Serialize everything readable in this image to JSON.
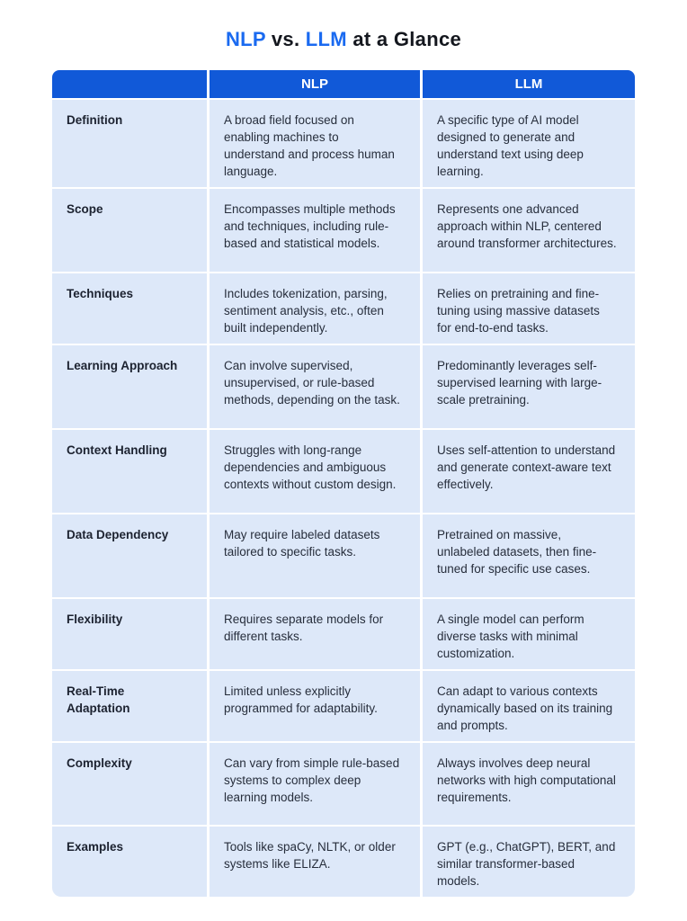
{
  "title": {
    "segments": [
      {
        "text": "NLP"
      },
      {
        "text": " vs. "
      },
      {
        "text": "LLM"
      },
      {
        "text": " at a Glance"
      }
    ]
  },
  "colors": {
    "accent_blue": "#1a6af0",
    "header_bg": "#1159d8",
    "cell_bg": "#dde8f9",
    "title_text": "#14171e",
    "feature_text": "#1c2230",
    "body_text": "#272e3c"
  },
  "table": {
    "header": {
      "feature": "",
      "nlp": "NLP",
      "llm": "LLM"
    },
    "rows": [
      {
        "feature": "Definition",
        "nlp": "A broad field focused on enabling machines to understand and process human language.",
        "llm": "A specific type of AI model designed to generate and understand text using deep learning."
      },
      {
        "feature": "Scope",
        "nlp": "Encompasses multiple methods and techniques, including rule-based and statistical models.",
        "llm": "Represents one advanced approach within NLP, centered around transformer architectures."
      },
      {
        "feature": "Techniques",
        "nlp": "Includes tokenization, parsing, sentiment analysis, etc., often built independently.",
        "llm": "Relies on pretraining and fine-tuning using massive datasets for end-to-end tasks."
      },
      {
        "feature": "Learning Approach",
        "nlp": "Can involve supervised, unsupervised, or rule-based methods, depending on the task.",
        "llm": "Predominantly leverages self-supervised learning with large-scale pretraining."
      },
      {
        "feature": "Context Handling",
        "nlp": "Struggles with long-range dependencies and ambiguous contexts without custom design.",
        "llm": "Uses self-attention to understand and generate context-aware text effectively."
      },
      {
        "feature": "Data Dependency",
        "nlp": "May require labeled datasets tailored to specific tasks.",
        "llm": "Pretrained on massive, unlabeled datasets, then fine-tuned for specific use cases."
      },
      {
        "feature": "Flexibility",
        "nlp": "Requires separate models for different tasks.",
        "llm": "A single model can perform diverse tasks with minimal customization."
      },
      {
        "feature": "Real-Time Adaptation",
        "nlp": "Limited unless explicitly programmed for adaptability.",
        "llm": "Can adapt to various contexts dynamically based on its training and prompts."
      },
      {
        "feature": "Complexity",
        "nlp": "Can vary from simple rule-based systems to complex deep learning models.",
        "llm": "Always involves deep neural networks with high computational requirements."
      },
      {
        "feature": "Examples",
        "nlp": "Tools like spaCy, NLTK, or older systems like ELIZA.",
        "llm": "GPT (e.g., ChatGPT), BERT, and similar transformer-based models."
      }
    ]
  }
}
